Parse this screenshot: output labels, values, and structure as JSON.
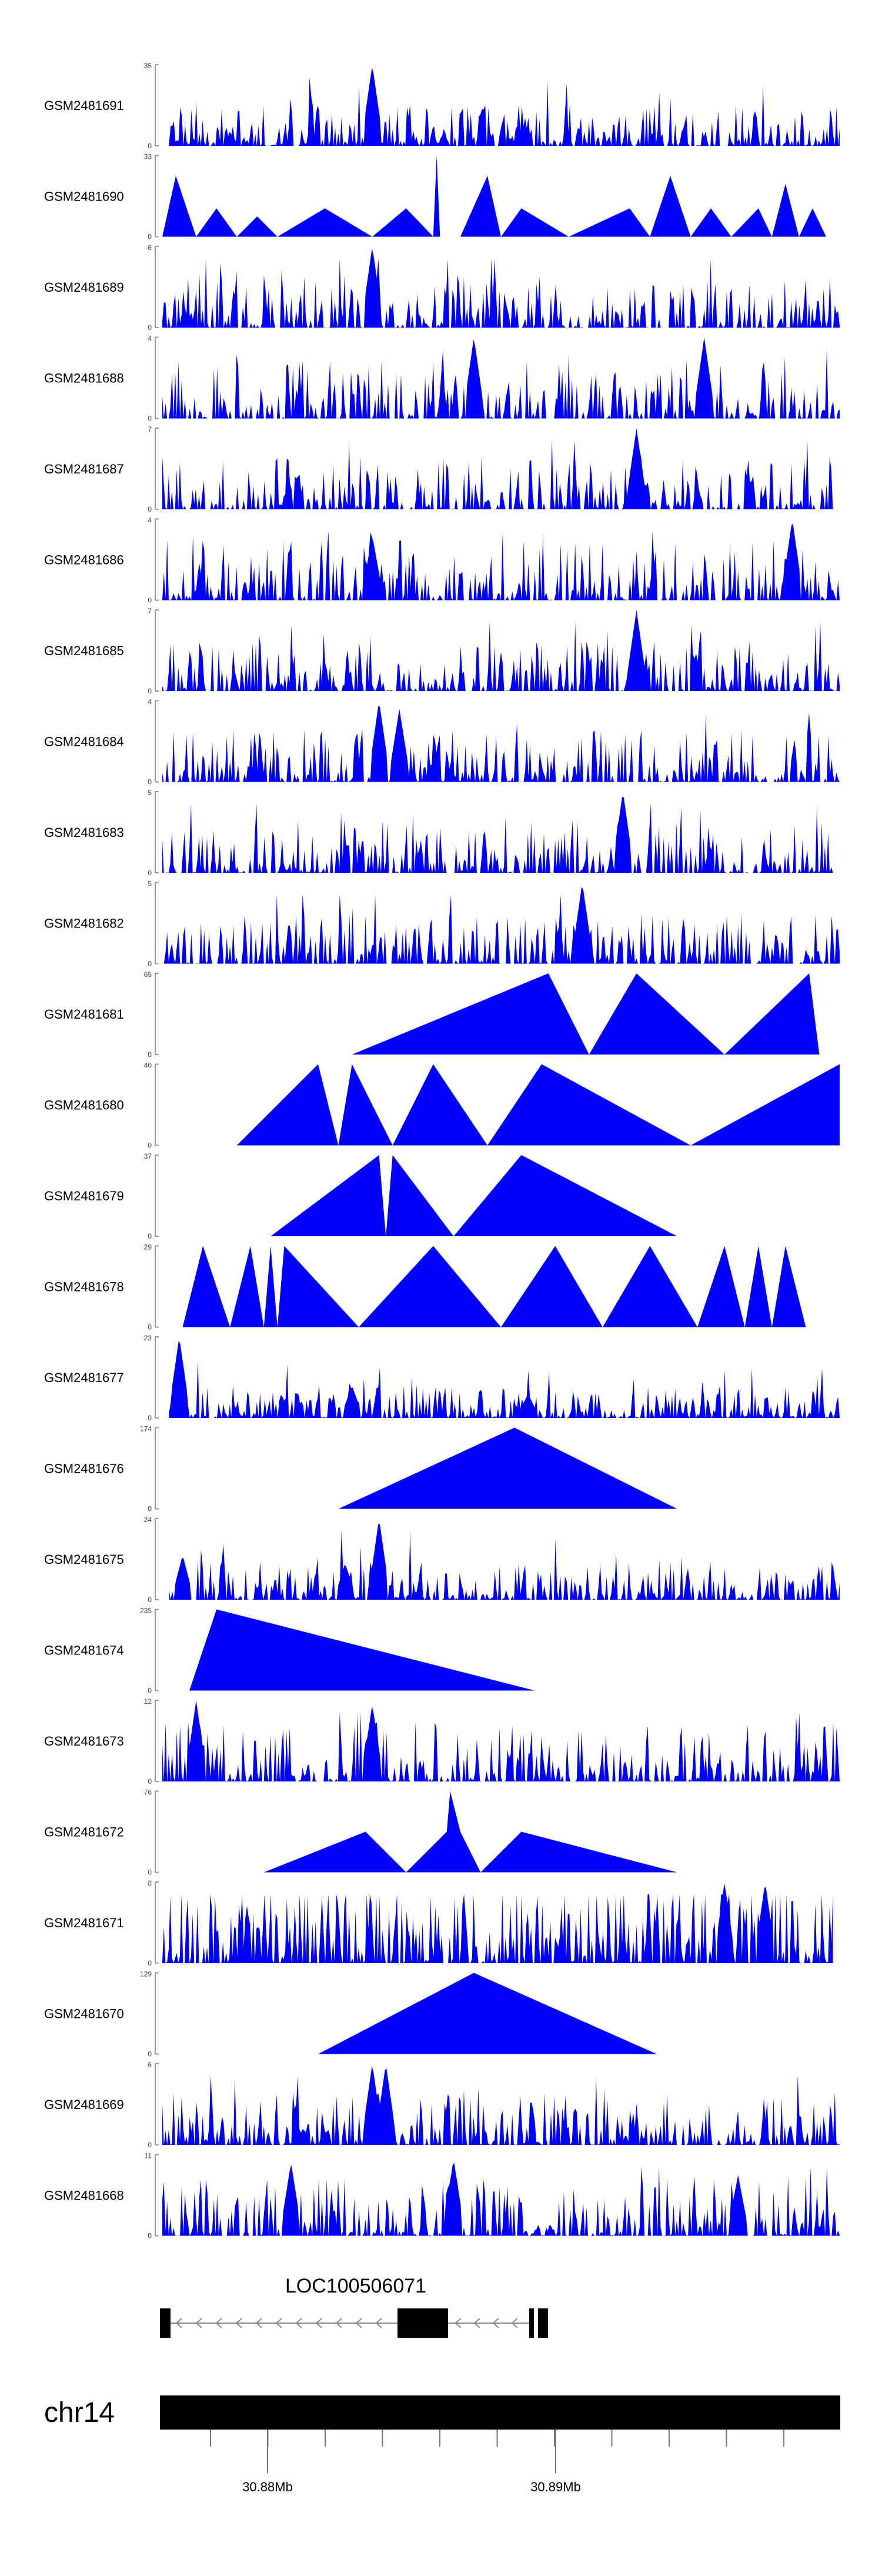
{
  "chart_data": {
    "type": "area",
    "x_unit": "Mb",
    "x_ticks": [
      "30.88Mb",
      "30.89Mb"
    ],
    "chromosome": "chr14",
    "gene": {
      "name": "LOC100506071",
      "strand": "-"
    },
    "fill_color": "#0000FF",
    "tracks": [
      {
        "name": "GSM2481691",
        "ymax": 35,
        "ymin": 0,
        "style": "spiky",
        "seed": 11,
        "density": 0.85,
        "base": 0.12,
        "peaks": [
          [
            0.31,
            1.0
          ]
        ],
        "start": 0.01,
        "end": 1.0
      },
      {
        "name": "GSM2481690",
        "ymax": 33,
        "ymin": 0,
        "style": "tri",
        "points": [
          [
            0.0,
            0
          ],
          [
            0.02,
            0.75
          ],
          [
            0.05,
            0
          ],
          [
            0.08,
            0.35
          ],
          [
            0.11,
            0
          ],
          [
            0.14,
            0.25
          ],
          [
            0.17,
            0
          ],
          [
            0.24,
            0.35
          ],
          [
            0.31,
            0
          ],
          [
            0.36,
            0.35
          ],
          [
            0.4,
            0
          ],
          [
            0.405,
            1.0
          ],
          [
            0.41,
            0
          ],
          [
            0.44,
            0
          ],
          [
            0.48,
            0.75
          ],
          [
            0.5,
            0
          ],
          [
            0.53,
            0.35
          ],
          [
            0.6,
            0
          ],
          [
            0.69,
            0.35
          ],
          [
            0.72,
            0
          ],
          [
            0.75,
            0.75
          ],
          [
            0.78,
            0
          ],
          [
            0.81,
            0.35
          ],
          [
            0.84,
            0
          ],
          [
            0.88,
            0.35
          ],
          [
            0.9,
            0
          ],
          [
            0.92,
            0.65
          ],
          [
            0.94,
            0
          ],
          [
            0.96,
            0.35
          ],
          [
            0.98,
            0
          ]
        ]
      },
      {
        "name": "GSM2481689",
        "ymax": 6,
        "ymin": 0,
        "style": "spiky",
        "seed": 23,
        "density": 0.7,
        "base": 0.2,
        "peaks": [
          [
            0.31,
            1.0
          ]
        ],
        "start": 0.0,
        "end": 1.0
      },
      {
        "name": "GSM2481688",
        "ymax": 4,
        "ymin": 0,
        "style": "spiky",
        "seed": 37,
        "density": 0.7,
        "base": 0.25,
        "peaks": [
          [
            0.46,
            1.0
          ],
          [
            0.8,
            1.0
          ]
        ],
        "start": 0.0,
        "end": 1.0
      },
      {
        "name": "GSM2481687",
        "ymax": 7,
        "ymin": 0,
        "style": "spiky",
        "seed": 41,
        "density": 0.7,
        "base": 0.2,
        "peaks": [
          [
            0.7,
            1.0
          ]
        ],
        "start": 0.0,
        "end": 0.99
      },
      {
        "name": "GSM2481686",
        "ymax": 4,
        "ymin": 0,
        "style": "spiky",
        "seed": 53,
        "density": 0.7,
        "base": 0.25,
        "peaks": [
          [
            0.31,
            0.8
          ],
          [
            0.93,
            1.0
          ]
        ],
        "start": 0.0,
        "end": 1.0
      },
      {
        "name": "GSM2481685",
        "ymax": 7,
        "ymin": 0,
        "style": "spiky",
        "seed": 67,
        "density": 0.75,
        "base": 0.18,
        "peaks": [
          [
            0.7,
            1.0
          ]
        ],
        "start": 0.0,
        "end": 1.0
      },
      {
        "name": "GSM2481684",
        "ymax": 4,
        "ymin": 0,
        "style": "spiky",
        "seed": 79,
        "density": 0.75,
        "base": 0.2,
        "peaks": [
          [
            0.32,
            1.0
          ],
          [
            0.35,
            0.9
          ]
        ],
        "start": 0.0,
        "end": 1.0
      },
      {
        "name": "GSM2481683",
        "ymax": 5,
        "ymin": 0,
        "style": "spiky",
        "seed": 83,
        "density": 0.7,
        "base": 0.2,
        "peaks": [
          [
            0.68,
            1.0
          ]
        ],
        "start": 0.0,
        "end": 0.99
      },
      {
        "name": "GSM2481682",
        "ymax": 5,
        "ymin": 0,
        "style": "spiky",
        "seed": 97,
        "density": 0.75,
        "base": 0.18,
        "peaks": [
          [
            0.62,
            1.0
          ]
        ],
        "start": 0.0,
        "end": 1.0
      },
      {
        "name": "GSM2481681",
        "ymax": 65,
        "ymin": 0,
        "style": "tri",
        "points": [
          [
            0.28,
            0
          ],
          [
            0.57,
            1.0
          ],
          [
            0.63,
            0
          ],
          [
            0.7,
            1.0
          ],
          [
            0.83,
            0
          ],
          [
            0.955,
            1.0
          ],
          [
            0.97,
            0
          ]
        ]
      },
      {
        "name": "GSM2481680",
        "ymax": 40,
        "ymin": 0,
        "style": "tri",
        "points": [
          [
            0.11,
            0
          ],
          [
            0.23,
            1.0
          ],
          [
            0.26,
            0
          ],
          [
            0.28,
            1.0
          ],
          [
            0.34,
            0
          ],
          [
            0.4,
            1.0
          ],
          [
            0.48,
            0
          ],
          [
            0.56,
            1.0
          ],
          [
            0.78,
            0
          ],
          [
            1.0,
            1.0
          ],
          [
            1.0,
            0
          ]
        ]
      },
      {
        "name": "GSM2481679",
        "ymax": 37,
        "ymin": 0,
        "style": "tri",
        "points": [
          [
            0.16,
            0
          ],
          [
            0.32,
            1.0
          ],
          [
            0.33,
            0
          ],
          [
            0.34,
            1.0
          ],
          [
            0.43,
            0
          ],
          [
            0.53,
            1.0
          ],
          [
            0.76,
            0
          ]
        ]
      },
      {
        "name": "GSM2481678",
        "ymax": 29,
        "ymin": 0,
        "style": "tri",
        "points": [
          [
            0.03,
            0
          ],
          [
            0.06,
            1.0
          ],
          [
            0.1,
            0
          ],
          [
            0.13,
            1.0
          ],
          [
            0.15,
            0
          ],
          [
            0.16,
            1.0
          ],
          [
            0.17,
            0
          ],
          [
            0.18,
            1.0
          ],
          [
            0.29,
            0
          ],
          [
            0.4,
            1.0
          ],
          [
            0.5,
            0
          ],
          [
            0.58,
            1.0
          ],
          [
            0.65,
            0
          ],
          [
            0.72,
            1.0
          ],
          [
            0.79,
            0
          ],
          [
            0.83,
            1.0
          ],
          [
            0.86,
            0
          ],
          [
            0.88,
            1.0
          ],
          [
            0.9,
            0
          ],
          [
            0.92,
            1.0
          ],
          [
            0.95,
            0
          ]
        ]
      },
      {
        "name": "GSM2481677",
        "ymax": 23,
        "ymin": 0,
        "style": "spiky",
        "seed": 101,
        "density": 0.85,
        "base": 0.06,
        "peaks": [
          [
            0.025,
            1.0
          ],
          [
            0.28,
            0.4
          ],
          [
            0.54,
            0.3
          ]
        ],
        "start": 0.01,
        "end": 1.0
      },
      {
        "name": "GSM2481676",
        "ymax": 174,
        "ymin": 0,
        "style": "tri",
        "points": [
          [
            0.26,
            0
          ],
          [
            0.52,
            1.0
          ],
          [
            0.76,
            0
          ]
        ]
      },
      {
        "name": "GSM2481675",
        "ymax": 24,
        "ymin": 0,
        "style": "spiky",
        "seed": 113,
        "density": 0.8,
        "base": 0.1,
        "peaks": [
          [
            0.03,
            0.55
          ],
          [
            0.27,
            0.45
          ],
          [
            0.32,
            1.0
          ]
        ],
        "start": 0.01,
        "end": 1.0
      },
      {
        "name": "GSM2481674",
        "ymax": 235,
        "ymin": 0,
        "style": "tri",
        "points": [
          [
            0.04,
            0
          ],
          [
            0.08,
            1.0
          ],
          [
            0.55,
            0
          ]
        ]
      },
      {
        "name": "GSM2481673",
        "ymax": 12,
        "ymin": 0,
        "style": "spiky",
        "seed": 127,
        "density": 0.75,
        "base": 0.25,
        "peaks": [
          [
            0.05,
            1.0
          ],
          [
            0.31,
            0.95
          ]
        ],
        "start": 0.0,
        "end": 1.0
      },
      {
        "name": "GSM2481672",
        "ymax": 76,
        "ymin": 0,
        "style": "tri",
        "points": [
          [
            0.15,
            0
          ],
          [
            0.3,
            0.5
          ],
          [
            0.36,
            0
          ],
          [
            0.42,
            0.5
          ],
          [
            0.425,
            1.0
          ],
          [
            0.44,
            0.5
          ],
          [
            0.47,
            0
          ],
          [
            0.53,
            0.5
          ],
          [
            0.76,
            0
          ]
        ]
      },
      {
        "name": "GSM2481671",
        "ymax": 8,
        "ymin": 0,
        "style": "spiky",
        "seed": 131,
        "density": 0.8,
        "base": 0.4,
        "peaks": [
          [
            0.83,
            1.0
          ],
          [
            0.89,
            1.0
          ]
        ],
        "start": 0.0,
        "end": 0.99
      },
      {
        "name": "GSM2481670",
        "ymax": 129,
        "ymin": 0,
        "style": "tri",
        "points": [
          [
            0.23,
            0
          ],
          [
            0.46,
            1.0
          ],
          [
            0.73,
            0
          ]
        ]
      },
      {
        "name": "GSM2481669",
        "ymax": 6,
        "ymin": 0,
        "style": "spiky",
        "seed": 139,
        "density": 0.8,
        "base": 0.2,
        "peaks": [
          [
            0.31,
            1.0
          ],
          [
            0.33,
            1.0
          ]
        ],
        "start": 0.0,
        "end": 1.0
      },
      {
        "name": "GSM2481668",
        "ymax": 11,
        "ymin": 0,
        "style": "spiky",
        "seed": 149,
        "density": 0.75,
        "base": 0.25,
        "peaks": [
          [
            0.19,
            0.9
          ],
          [
            0.43,
            0.95
          ],
          [
            0.85,
            0.75
          ]
        ],
        "start": 0.0,
        "end": 1.0
      }
    ]
  }
}
